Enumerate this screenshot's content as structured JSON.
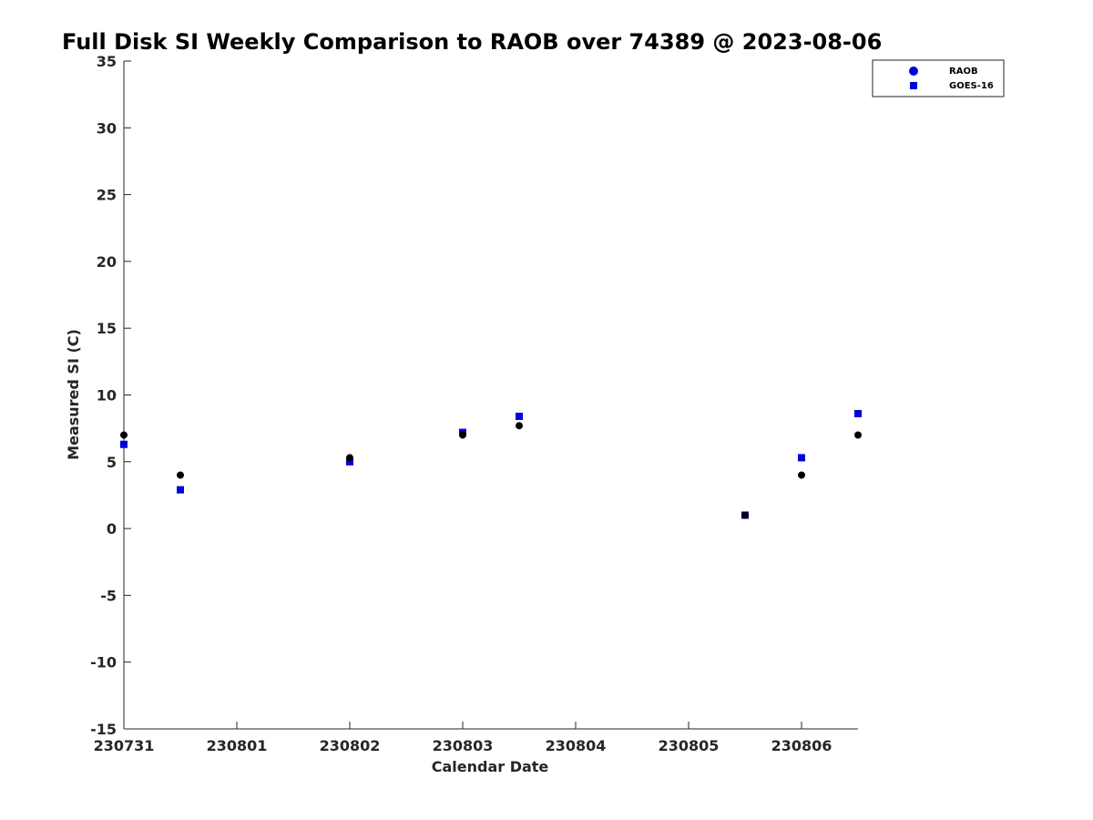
{
  "chart_data": {
    "type": "scatter",
    "title": "Full Disk SI Weekly Comparison to RAOB over 74389 @ 2023-08-06",
    "xlabel": "Calendar Date",
    "ylabel": "Measured SI (C)",
    "xlim": [
      "2023-07-31T00:00",
      "2023-08-06T12:00"
    ],
    "ylim": [
      -15,
      35
    ],
    "x_ticks": [
      {
        "date": "2023-07-31",
        "label": "230731"
      },
      {
        "date": "2023-08-01",
        "label": "230801"
      },
      {
        "date": "2023-08-02",
        "label": "230802"
      },
      {
        "date": "2023-08-03",
        "label": "230803"
      },
      {
        "date": "2023-08-04",
        "label": "230804"
      },
      {
        "date": "2023-08-05",
        "label": "230805"
      },
      {
        "date": "2023-08-06",
        "label": "230806"
      }
    ],
    "y_ticks": [
      35,
      30,
      25,
      20,
      15,
      10,
      5,
      0,
      -5,
      -10,
      -15
    ],
    "grid": false,
    "legend_position": "top-right",
    "series": [
      {
        "name": "RAOB",
        "color": "#000000",
        "marker": "circle",
        "points": [
          {
            "x": "2023-07-31T00:00",
            "y": 7.0
          },
          {
            "x": "2023-07-31T12:00",
            "y": 4.0
          },
          {
            "x": "2023-08-02T00:00",
            "y": 5.3
          },
          {
            "x": "2023-08-03T00:00",
            "y": 7.0
          },
          {
            "x": "2023-08-03T12:00",
            "y": 7.7
          },
          {
            "x": "2023-08-05T12:00",
            "y": 1.0
          },
          {
            "x": "2023-08-06T00:00",
            "y": 4.0
          },
          {
            "x": "2023-08-06T12:00",
            "y": 7.0
          }
        ]
      },
      {
        "name": "GOES-16",
        "color": "#0000dd",
        "marker": "square",
        "points": [
          {
            "x": "2023-07-31T00:00",
            "y": 6.3
          },
          {
            "x": "2023-07-31T12:00",
            "y": 2.9
          },
          {
            "x": "2023-08-02T00:00",
            "y": 5.0
          },
          {
            "x": "2023-08-03T00:00",
            "y": 7.2
          },
          {
            "x": "2023-08-03T12:00",
            "y": 8.4
          },
          {
            "x": "2023-08-05T12:00",
            "y": 1.0
          },
          {
            "x": "2023-08-06T00:00",
            "y": 5.3
          },
          {
            "x": "2023-08-06T12:00",
            "y": 8.6
          }
        ]
      }
    ],
    "legend_marker_color": "#0000dd"
  }
}
